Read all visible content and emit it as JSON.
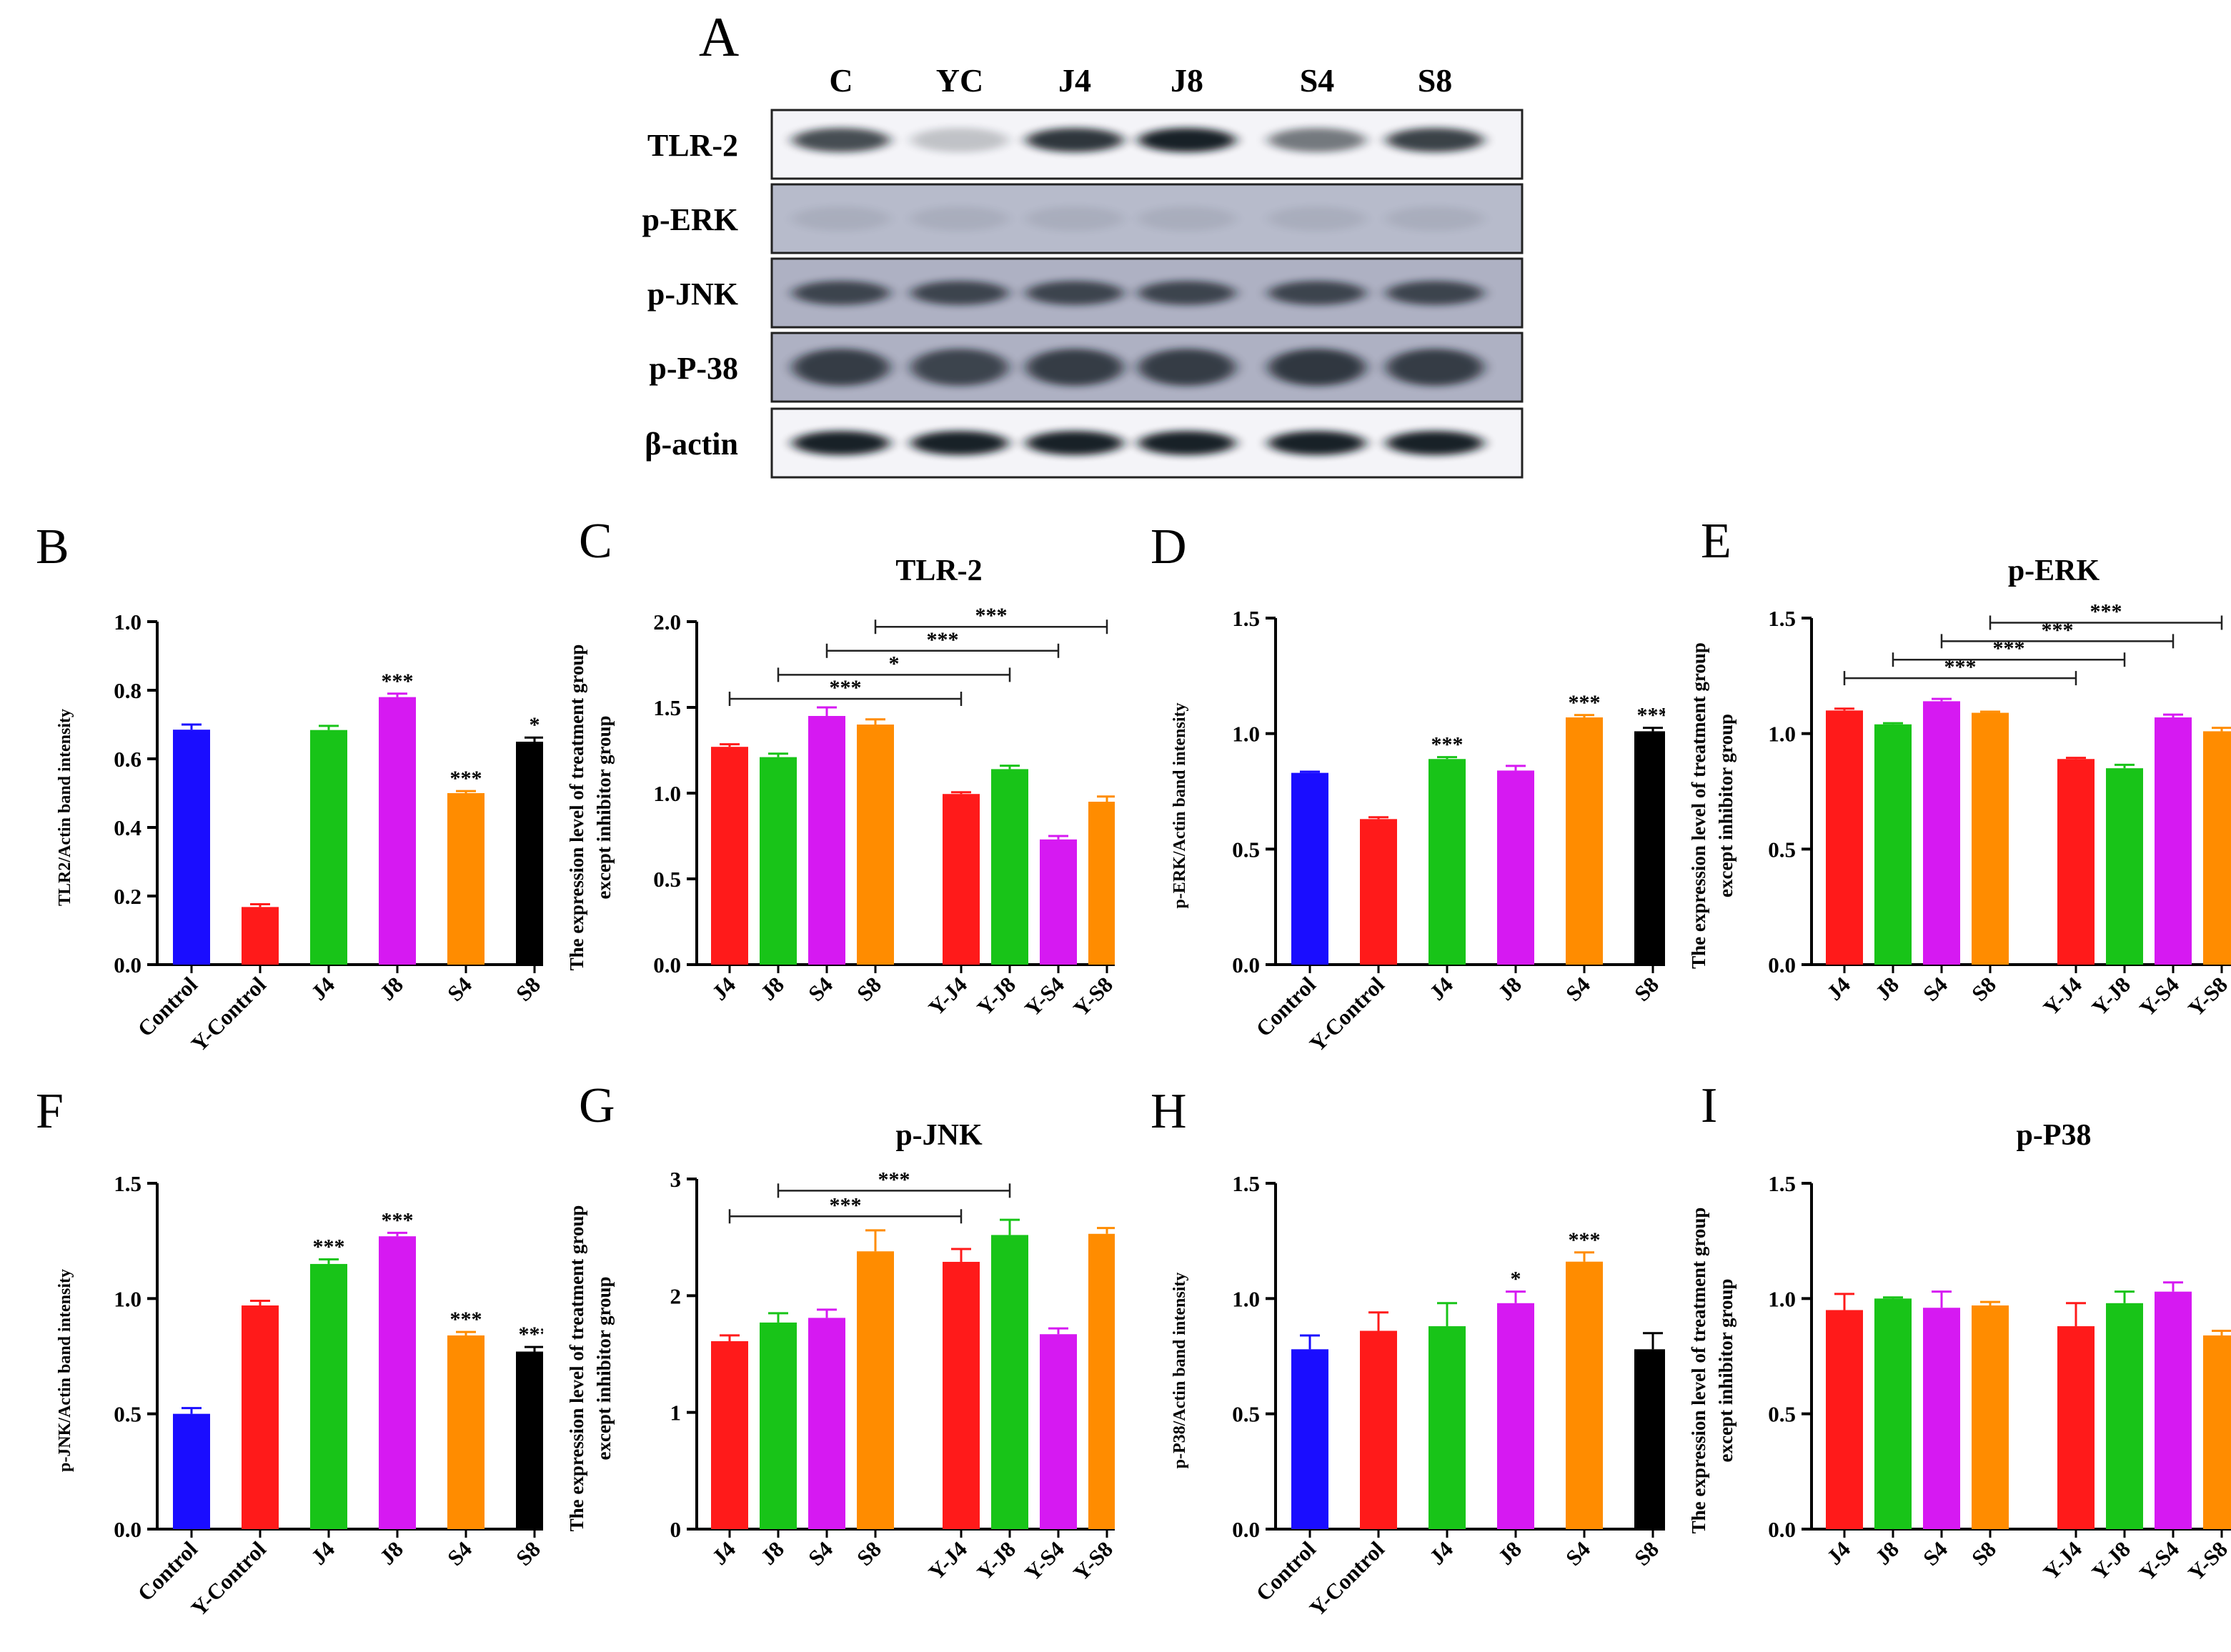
{
  "western_blot": {
    "letter": "A",
    "lanes": [
      "C",
      "YC",
      "J4",
      "J8",
      "S4",
      "S8"
    ],
    "rows": [
      {
        "label": "TLR-2",
        "band_intensity": [
          0.75,
          0.22,
          0.85,
          0.95,
          0.55,
          0.8
        ]
      },
      {
        "label": "p-ERK",
        "band_intensity": [
          0.08,
          0.08,
          0.08,
          0.08,
          0.08,
          0.08
        ]
      },
      {
        "label": "p-JNK",
        "band_intensity": [
          0.7,
          0.7,
          0.7,
          0.7,
          0.7,
          0.7
        ]
      },
      {
        "label": "p-P-38",
        "band_intensity": [
          0.75,
          0.7,
          0.75,
          0.75,
          0.78,
          0.75
        ]
      },
      {
        "label": "β-actin",
        "band_intensity": [
          0.95,
          0.95,
          0.95,
          0.95,
          0.95,
          0.95
        ]
      }
    ]
  },
  "colors": {
    "blue": "#1a0dff",
    "red": "#ff1a1a",
    "green": "#18c418",
    "magenta": "#d619f2",
    "orange": "#ff8c00",
    "black": "#000000"
  },
  "chart_data": [
    {
      "letter": "B",
      "type": "bar",
      "title": "",
      "ylabel": "TLR2/Actin band intensity",
      "ylim": [
        0,
        1.0
      ],
      "yticks": [
        "0.0",
        "0.2",
        "0.4",
        "0.6",
        "0.8",
        "1.0"
      ],
      "categories": [
        "Control",
        "Y-Control",
        "J4",
        "J8",
        "S4",
        "S8"
      ],
      "values": [
        0.685,
        0.168,
        0.684,
        0.78,
        0.5,
        0.65
      ],
      "errors": [
        0.015,
        0.008,
        0.012,
        0.01,
        0.006,
        0.012
      ],
      "significance": [
        "",
        "",
        "",
        "***",
        "***",
        "*"
      ],
      "colors": [
        "blue",
        "red",
        "green",
        "magenta",
        "orange",
        "black"
      ]
    },
    {
      "letter": "C",
      "type": "bar",
      "title": "TLR-2",
      "ylabel": [
        "The expression level of treatment group",
        "except inhibitor group"
      ],
      "ylim": [
        0,
        2.0
      ],
      "yticks": [
        "0.0",
        "0.5",
        "1.0",
        "1.5",
        "2.0"
      ],
      "categories": [
        "J4",
        "J8",
        "S4",
        "S8",
        "Y-J4",
        "Y-J8",
        "Y-S4",
        "Y-S8"
      ],
      "values": [
        1.27,
        1.21,
        1.45,
        1.4,
        0.995,
        1.14,
        0.73,
        0.95
      ],
      "errors": [
        0.015,
        0.02,
        0.05,
        0.03,
        0.01,
        0.02,
        0.02,
        0.03
      ],
      "colors": [
        "red",
        "green",
        "magenta",
        "orange",
        "red",
        "green",
        "magenta",
        "orange"
      ],
      "comparisons": [
        {
          "from": 0,
          "to": 4,
          "label": "***",
          "y": 1.55
        },
        {
          "from": 1,
          "to": 5,
          "label": "*",
          "y": 1.69
        },
        {
          "from": 2,
          "to": 6,
          "label": "***",
          "y": 1.83
        },
        {
          "from": 3,
          "to": 7,
          "label": "***",
          "y": 1.97
        }
      ]
    },
    {
      "letter": "D",
      "type": "bar",
      "title": "",
      "ylabel": "p-ERK/Actin band intensity",
      "ylim": [
        0,
        1.5
      ],
      "yticks": [
        "0.0",
        "0.5",
        "1.0",
        "1.5"
      ],
      "categories": [
        "Control",
        "Y-Control",
        "J4",
        "J8",
        "S4",
        "S8"
      ],
      "values": [
        0.83,
        0.63,
        0.89,
        0.84,
        1.07,
        1.01
      ],
      "errors": [
        0.005,
        0.008,
        0.008,
        0.02,
        0.01,
        0.015
      ],
      "significance": [
        "",
        "",
        "***",
        "",
        "***",
        "***"
      ],
      "colors": [
        "blue",
        "red",
        "green",
        "magenta",
        "orange",
        "black"
      ]
    },
    {
      "letter": "E",
      "type": "bar",
      "title": "p-ERK",
      "ylabel": [
        "The expression level of treatment group",
        "except inhibitor group"
      ],
      "ylim": [
        0,
        1.5
      ],
      "yticks": [
        "0.0",
        "0.5",
        "1.0",
        "1.5"
      ],
      "categories": [
        "J4",
        "J8",
        "S4",
        "S8",
        "Y-J4",
        "Y-J8",
        "Y-S4",
        "Y-S8"
      ],
      "values": [
        1.1,
        1.04,
        1.14,
        1.09,
        0.89,
        0.85,
        1.07,
        1.01
      ],
      "errors": [
        0.008,
        0.005,
        0.01,
        0.005,
        0.005,
        0.015,
        0.012,
        0.015
      ],
      "colors": [
        "red",
        "green",
        "magenta",
        "orange",
        "red",
        "green",
        "magenta",
        "orange"
      ],
      "comparisons": [
        {
          "from": 0,
          "to": 4,
          "label": "***",
          "y": 1.24
        },
        {
          "from": 1,
          "to": 5,
          "label": "***",
          "y": 1.32
        },
        {
          "from": 2,
          "to": 6,
          "label": "***",
          "y": 1.4
        },
        {
          "from": 3,
          "to": 7,
          "label": "***",
          "y": 1.48
        }
      ]
    },
    {
      "letter": "F",
      "type": "bar",
      "title": "",
      "ylabel": "p-JNK/Actin band intensity",
      "ylim": [
        0,
        1.5
      ],
      "yticks": [
        "0.0",
        "0.5",
        "1.0",
        "1.5"
      ],
      "categories": [
        "Control",
        "Y-Control",
        "J4",
        "J8",
        "S4",
        "S8"
      ],
      "values": [
        0.5,
        0.97,
        1.15,
        1.27,
        0.84,
        0.77
      ],
      "errors": [
        0.025,
        0.02,
        0.02,
        0.015,
        0.015,
        0.02
      ],
      "significance": [
        "",
        "",
        "***",
        "***",
        "***",
        "***"
      ],
      "colors": [
        "blue",
        "red",
        "green",
        "magenta",
        "orange",
        "black"
      ]
    },
    {
      "letter": "G",
      "type": "bar",
      "title": "p-JNK",
      "ylabel": [
        "The expression level of treatment group",
        "except inhibitor group"
      ],
      "ylim": [
        0,
        3
      ],
      "yticks": [
        "0",
        "1",
        "2",
        "3"
      ],
      "categories": [
        "J4",
        "J8",
        "S4",
        "S8",
        "Y-J4",
        "Y-J8",
        "Y-S4",
        "Y-S8"
      ],
      "values": [
        1.61,
        1.77,
        1.81,
        2.38,
        2.29,
        2.52,
        1.67,
        2.53
      ],
      "errors": [
        0.05,
        0.08,
        0.07,
        0.18,
        0.11,
        0.13,
        0.05,
        0.05
      ],
      "colors": [
        "red",
        "green",
        "magenta",
        "orange",
        "red",
        "green",
        "magenta",
        "orange"
      ],
      "comparisons": [
        {
          "from": 0,
          "to": 4,
          "label": "***",
          "y": 2.68
        },
        {
          "from": 1,
          "to": 5,
          "label": "***",
          "y": 2.9
        }
      ]
    },
    {
      "letter": "H",
      "type": "bar",
      "title": "",
      "ylabel": "p-P38/Actin band intensity",
      "ylim": [
        0,
        1.5
      ],
      "yticks": [
        "0.0",
        "0.5",
        "1.0",
        "1.5"
      ],
      "categories": [
        "Control",
        "Y-Control",
        "J4",
        "J8",
        "S4",
        "S8"
      ],
      "values": [
        0.78,
        0.86,
        0.88,
        0.98,
        1.16,
        0.78
      ],
      "errors": [
        0.06,
        0.08,
        0.1,
        0.05,
        0.04,
        0.07
      ],
      "significance": [
        "",
        "",
        "",
        "*",
        "***",
        ""
      ],
      "colors": [
        "blue",
        "red",
        "green",
        "magenta",
        "orange",
        "black"
      ]
    },
    {
      "letter": "I",
      "type": "bar",
      "title": "p-P38",
      "ylabel": [
        "The expression level of treatment group",
        "except inhibitor group"
      ],
      "ylim": [
        0,
        1.5
      ],
      "yticks": [
        "0.0",
        "0.5",
        "1.0",
        "1.5"
      ],
      "categories": [
        "J4",
        "J8",
        "S4",
        "S8",
        "Y-J4",
        "Y-J8",
        "Y-S4",
        "Y-S8"
      ],
      "values": [
        0.95,
        1.0,
        0.96,
        0.97,
        0.88,
        0.98,
        1.03,
        0.84
      ],
      "errors": [
        0.07,
        0.005,
        0.07,
        0.015,
        0.1,
        0.05,
        0.04,
        0.02
      ],
      "colors": [
        "red",
        "green",
        "magenta",
        "orange",
        "red",
        "green",
        "magenta",
        "orange"
      ]
    }
  ]
}
